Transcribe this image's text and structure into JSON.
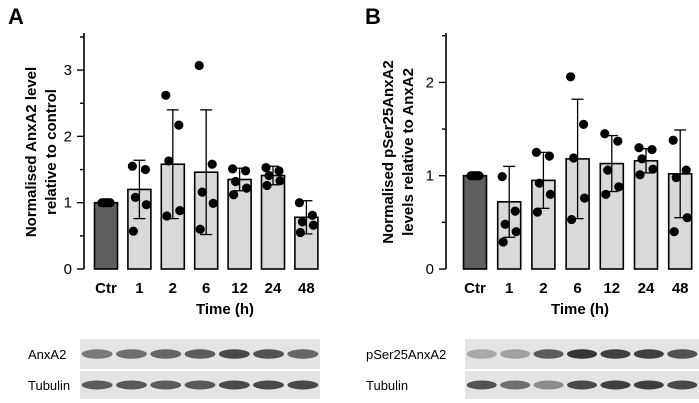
{
  "chart_data": [
    {
      "panel": "A",
      "type": "bar",
      "ylabel": [
        "Normalised AnxA2 level",
        "relative to control"
      ],
      "xlabel": "Time (h)",
      "categories": [
        "Ctr",
        "1",
        "2",
        "6",
        "12",
        "24",
        "48"
      ],
      "ylim": [
        0,
        3.5
      ],
      "yticks": [
        "0",
        "1",
        "2",
        "3"
      ],
      "values": [
        1.0,
        1.2,
        1.58,
        1.46,
        1.35,
        1.41,
        0.78
      ],
      "error": [
        0.0,
        0.44,
        0.82,
        0.94,
        0.17,
        0.14,
        0.25
      ],
      "points": [
        [
          1.0,
          1.0,
          1.0,
          1.0,
          1.0
        ],
        [
          1.55,
          1.5,
          1.08,
          0.97,
          0.57
        ],
        [
          2.62,
          2.17,
          1.63,
          0.88,
          0.8
        ],
        [
          3.07,
          1.58,
          1.16,
          0.99,
          0.6
        ],
        [
          1.51,
          1.48,
          1.32,
          1.22,
          1.12
        ],
        [
          1.53,
          1.48,
          1.41,
          1.33,
          1.26
        ],
        [
          1.0,
          0.81,
          0.71,
          0.66,
          0.55
        ]
      ],
      "bar_colors": [
        "#5f5f5f",
        "#d9d9d9",
        "#d9d9d9",
        "#d9d9d9",
        "#d9d9d9",
        "#d9d9d9",
        "#d9d9d9"
      ],
      "blot_labels": [
        "AnxA2",
        "Tubulin"
      ]
    },
    {
      "panel": "B",
      "type": "bar",
      "ylabel": [
        "Normalised pSer25AnxA2",
        "levels relative to AnxA2"
      ],
      "xlabel": "Time (h)",
      "categories": [
        "Ctr",
        "1",
        "2",
        "6",
        "12",
        "24",
        "48"
      ],
      "ylim": [
        0,
        2.5
      ],
      "yticks": [
        "0",
        "1",
        "2"
      ],
      "values": [
        1.0,
        0.72,
        0.95,
        1.18,
        1.13,
        1.16,
        1.02
      ],
      "error": [
        0.0,
        0.38,
        0.3,
        0.64,
        0.3,
        0.13,
        0.47
      ],
      "points": [
        [
          1.0,
          1.0,
          1.0,
          1.0,
          1.0
        ],
        [
          0.99,
          0.62,
          0.48,
          0.4,
          0.29
        ],
        [
          1.25,
          1.21,
          0.92,
          0.8,
          0.61
        ],
        [
          2.06,
          1.55,
          1.19,
          0.76,
          0.53
        ],
        [
          1.45,
          1.37,
          1.06,
          0.88,
          0.8
        ],
        [
          1.3,
          1.28,
          1.18,
          1.07,
          1.01
        ],
        [
          1.38,
          1.06,
          0.98,
          0.55,
          0.4
        ]
      ],
      "bar_colors": [
        "#5f5f5f",
        "#d9d9d9",
        "#d9d9d9",
        "#d9d9d9",
        "#d9d9d9",
        "#d9d9d9",
        "#d9d9d9"
      ],
      "blot_labels": [
        "pSer25AnxA2",
        "Tubulin"
      ]
    }
  ],
  "panel_labels": [
    "A",
    "B"
  ]
}
